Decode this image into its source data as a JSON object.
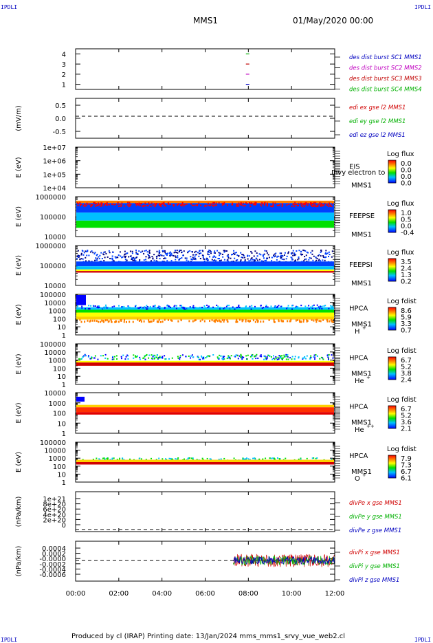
{
  "header": {
    "corner_tl": "IPDLI",
    "corner_tr": "IPDLI",
    "corner_bl": "IPDLI",
    "corner_br": "IPDLI",
    "mission": "MMS1",
    "date": "01/May/2020 00:00"
  },
  "footer": {
    "text": "Produced by cl (IRAP)   Printing date: 13/Jan/2024   mms_mms1_srvy_vue_web2.cl"
  },
  "time_axis": {
    "ticks": [
      "00:00",
      "02:00",
      "04:00",
      "06:00",
      "08:00",
      "10:00",
      "12:00"
    ],
    "range_hours": [
      0,
      12
    ]
  },
  "colors": {
    "MMS1": "#0000c0",
    "MMS2": "#c000c0",
    "MMS3": "#c00000",
    "MMS4": "#00b000",
    "x": "#d00000",
    "y": "#00b000",
    "z": "#0000c0",
    "axis": "#000000"
  },
  "chart_data": [
    {
      "type": "scatter",
      "name": "burst_availability",
      "ylabel": "",
      "yticks": [
        "4",
        "3",
        "2",
        "1"
      ],
      "ylim": [
        0.5,
        4.5
      ],
      "legend": [
        "des dist burst SC1 MMS1",
        "des dist burst SC2 MMS2",
        "des dist burst SC3 MMS3",
        "des dist burst SC4 MMS4"
      ],
      "legend_colors": [
        "#0000c0",
        "#c000c0",
        "#c00000",
        "#00b000"
      ],
      "series": [
        {
          "name": "des dist burst SC4 MMS4",
          "x_hours": [
            7.95
          ],
          "y": 4
        },
        {
          "name": "des dist burst SC3 MMS3",
          "x_hours": [
            7.95
          ],
          "y": 3
        },
        {
          "name": "des dist burst SC2 MMS2",
          "x_hours": [
            7.95
          ],
          "y": 2
        },
        {
          "name": "des dist burst SC1 MMS1",
          "x_hours": [
            7.95
          ],
          "y": 1
        }
      ]
    },
    {
      "type": "line",
      "name": "edi_efield",
      "ylabel": "(mV/m)",
      "yticks": [
        "0.5",
        "0.0",
        "-0.5"
      ],
      "ylim": [
        -0.8,
        0.8
      ],
      "legend": [
        "edi ex gse l2 MMS1",
        "edi ey gse l2 MMS1",
        "edi ez gse l2 MMS1"
      ],
      "legend_colors": [
        "#d00000",
        "#00b000",
        "#0000c0"
      ],
      "reference_line": 0,
      "series": []
    },
    {
      "type": "heatmap",
      "name": "EIS",
      "ylabel": "E (eV)",
      "yticks": [
        "1e+07",
        "1e+06",
        "1e+05",
        "1e+04"
      ],
      "instrument": "EIS",
      "overlay_text": "Ihvy electron to",
      "spacecraft": "MMS1",
      "colorbar_title": "Log flux",
      "colorbar_ticks": [
        "0.0",
        "0.0",
        "0.0",
        "0.0"
      ],
      "empty": true
    },
    {
      "type": "heatmap",
      "name": "FEEPSE",
      "ylabel": "E (eV)",
      "yticks": [
        "1000000",
        "100000",
        "10000"
      ],
      "instrument": "FEEPSE",
      "spacecraft": "MMS1",
      "colorbar_title": "Log flux",
      "colorbar_ticks": [
        "1.0",
        "0.5",
        "0.0",
        "-0.4"
      ],
      "coverage_hours": [
        0,
        12
      ]
    },
    {
      "type": "heatmap",
      "name": "FEEPSI",
      "ylabel": "E (eV)",
      "yticks": [
        "1000000",
        "100000",
        "10000"
      ],
      "instrument": "FEEPSI",
      "spacecraft": "MMS1",
      "colorbar_title": "Log flux",
      "colorbar_ticks": [
        "3.5",
        "2.4",
        "1.3",
        "0.2"
      ],
      "coverage_hours": [
        0,
        12
      ]
    },
    {
      "type": "heatmap",
      "name": "HPCA_H",
      "ylabel": "E (eV)",
      "yticks": [
        "100000",
        "10000",
        "1000",
        "100",
        "10",
        "1"
      ],
      "instrument": "HPCA",
      "spacecraft": "MMS1",
      "species": "H",
      "species_sup": "+",
      "colorbar_title": "Log fdist",
      "colorbar_ticks": [
        "8.6",
        "5.9",
        "3.3",
        "0.7"
      ],
      "coverage_hours": [
        0,
        12
      ]
    },
    {
      "type": "heatmap",
      "name": "HPCA_He1",
      "ylabel": "E (eV)",
      "yticks": [
        "100000",
        "10000",
        "1000",
        "100",
        "10",
        "1"
      ],
      "instrument": "HPCA",
      "spacecraft": "MMS1",
      "species": "He",
      "species_sup": "+",
      "colorbar_title": "Log fdist",
      "colorbar_ticks": [
        "6.7",
        "5.2",
        "3.8",
        "2.4"
      ],
      "coverage_hours": [
        0,
        12
      ]
    },
    {
      "type": "heatmap",
      "name": "HPCA_He2",
      "ylabel": "E (eV)",
      "yticks": [
        "10000",
        "1000",
        "100",
        "10",
        "1"
      ],
      "instrument": "HPCA",
      "spacecraft": "MMS1",
      "species": "He",
      "species_sup": "++",
      "colorbar_title": "Log fdist",
      "colorbar_ticks": [
        "6.7",
        "5.2",
        "3.6",
        "2.1"
      ],
      "coverage_hours": [
        0,
        12
      ]
    },
    {
      "type": "heatmap",
      "name": "HPCA_O",
      "ylabel": "E (eV)",
      "yticks": [
        "100000",
        "10000",
        "1000",
        "100",
        "10",
        "1"
      ],
      "instrument": "HPCA",
      "spacecraft": "MMS1",
      "species": "O",
      "species_sup": "+",
      "colorbar_title": "Log fdist",
      "colorbar_ticks": [
        "7.9",
        "7.3",
        "6.7",
        "6.1"
      ],
      "coverage_hours": [
        0,
        12
      ]
    },
    {
      "type": "line",
      "name": "divPe",
      "ylabel": "(nPa/km)",
      "yticks": [
        "1e+21",
        "8e+20",
        "6e+20",
        "4e+20",
        "2e+20",
        "0"
      ],
      "ylim": [
        -1e+20,
        1.1e+21
      ],
      "legend": [
        "divPe x gse MMS1",
        "divPe y gse MMS1",
        "divPe z gse MMS1"
      ],
      "legend_colors": [
        "#d00000",
        "#00b000",
        "#0000c0"
      ],
      "reference_line": 0,
      "series": []
    },
    {
      "type": "line",
      "name": "divPi",
      "ylabel": "(nPa/km)",
      "yticks": [
        "0.0004",
        "0.0002",
        "-0.0000",
        "-0.0002",
        "-0.0004",
        "-0.0006"
      ],
      "ylim": [
        -0.0007,
        0.0005
      ],
      "legend": [
        "divPi x gse MMS1",
        "divPi y gse MMS1",
        "divPi z gse MMS1"
      ],
      "legend_colors": [
        "#d00000",
        "#00b000",
        "#0000c0"
      ],
      "reference_line": 0,
      "data_start_hours": 7.3,
      "data_end_hours": 12.0,
      "series": [
        {
          "name": "divPi x gse MMS1",
          "amplitude": 0.0003
        },
        {
          "name": "divPi y gse MMS1",
          "amplitude": 0.00022
        },
        {
          "name": "divPi z gse MMS1",
          "amplitude": 0.00018
        }
      ]
    }
  ]
}
